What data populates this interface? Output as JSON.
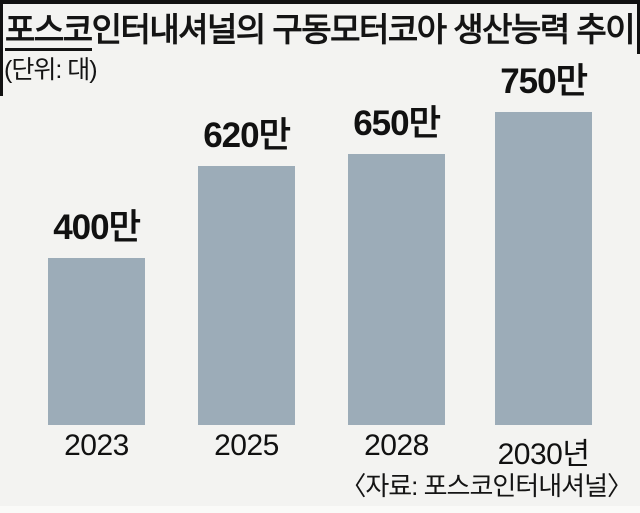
{
  "header": {
    "title_brand": "포스코",
    "title_rest": "인터내셔널의 구동모터코아 생산능력 추이",
    "unit": "(단위: 대)"
  },
  "footer": {
    "source": "〈자료: 포스코인터내셔널〉"
  },
  "chart_data": {
    "type": "bar",
    "title": "포스코인터내셔널의 구동모터코아 생산능력 추이",
    "unit_note": "(단위: 대)",
    "categories": [
      "2023",
      "2025",
      "2028",
      "2030년"
    ],
    "values": [
      400,
      620,
      650,
      750
    ],
    "value_unit": "만",
    "value_labels": [
      "400만",
      "620만",
      "650만",
      "750만"
    ],
    "ylim": [
      0,
      800
    ],
    "grid": false,
    "legend": false,
    "source": "〈자료: 포스코인터내셔널〉",
    "colors": {
      "bar": "#9cacb8",
      "background": "#f3f3f1",
      "text": "#141414"
    }
  }
}
